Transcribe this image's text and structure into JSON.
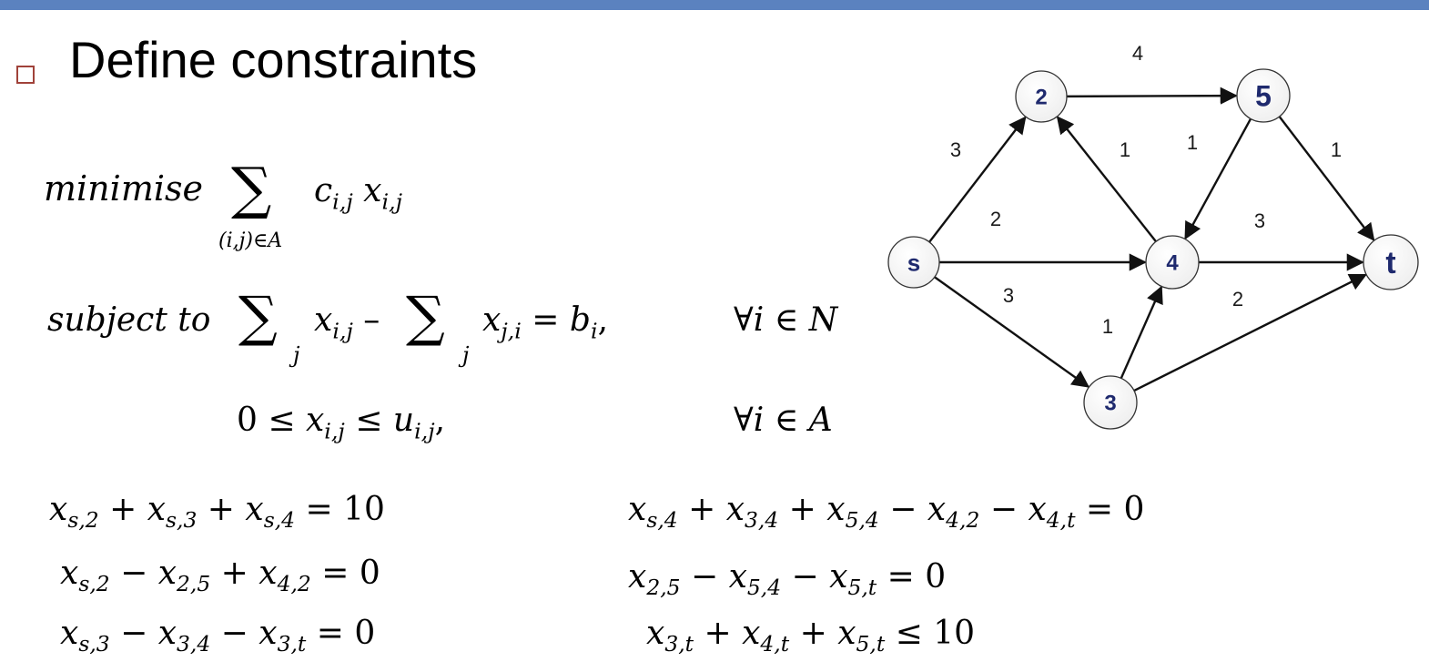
{
  "slide": {
    "title": "Define constraints",
    "accent_color": "#5b82bf",
    "bullet_color": "#a0423a"
  },
  "formulation": {
    "objective_keyword": "minimise",
    "objective_sum_index": "(i,j)∈A",
    "objective_term_c": "c",
    "objective_term_c_sub": "i,j",
    "objective_term_x": "x",
    "objective_term_x_sub": "i,j",
    "subject_to_keyword": "subject to",
    "sum_index_j": "j",
    "flow_out_var": "x",
    "flow_out_sub": "i,j",
    "minus": "–",
    "flow_in_var": "x",
    "flow_in_sub": "j,i",
    "equals": "=",
    "rhs_var": "b",
    "rhs_sub": "i",
    "comma": ",",
    "forall_N": "∀i  ∈ N",
    "capacity_lhs": "0  ≤",
    "capacity_var": "x",
    "capacity_var_sub": "i,j",
    "capacity_leq": "≤",
    "capacity_ub": "u",
    "capacity_ub_sub": "i,j",
    "forall_A": "∀i  ∈ A"
  },
  "equations_left": [
    {
      "id": "eq1"
    },
    {
      "id": "eq2"
    },
    {
      "id": "eq3"
    }
  ],
  "graph": {
    "nodes": [
      {
        "id": "s",
        "label": "s"
      },
      {
        "id": "2",
        "label": "2"
      },
      {
        "id": "3",
        "label": "3"
      },
      {
        "id": "4",
        "label": "4"
      },
      {
        "id": "5",
        "label": "5"
      },
      {
        "id": "t",
        "label": "t"
      }
    ],
    "edges": [
      {
        "from": "s",
        "to": "2",
        "weight": "3"
      },
      {
        "from": "s",
        "to": "4",
        "weight": "2"
      },
      {
        "from": "s",
        "to": "3",
        "weight": "3"
      },
      {
        "from": "2",
        "to": "5",
        "weight": "4"
      },
      {
        "from": "4",
        "to": "2",
        "weight": "1"
      },
      {
        "from": "5",
        "to": "4",
        "weight": "1"
      },
      {
        "from": "5",
        "to": "t",
        "weight": "1"
      },
      {
        "from": "4",
        "to": "t",
        "weight": "3"
      },
      {
        "from": "3",
        "to": "4",
        "weight": "1"
      },
      {
        "from": "3",
        "to": "t",
        "weight": "2"
      }
    ],
    "node_text_color": "#1f2a6e"
  }
}
